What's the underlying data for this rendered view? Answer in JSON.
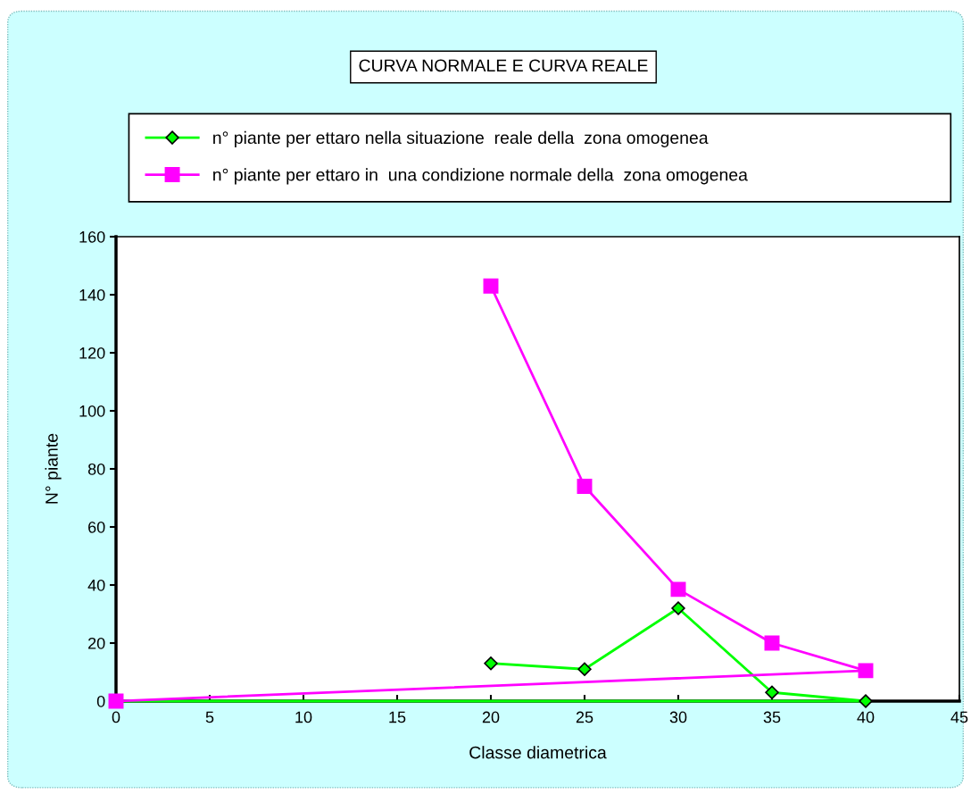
{
  "chart_data": {
    "type": "line",
    "title": "CURVA NORMALE E CURVA REALE",
    "xlabel": "Classe diametrica",
    "ylabel": "N° piante",
    "series": [
      {
        "name": "n° piante per ettaro nella situazione  reale della  zona omogenea",
        "color": "#00ff00",
        "marker": "diamond",
        "x": [
          20,
          25,
          30,
          35,
          40,
          0
        ],
        "values": [
          13,
          11,
          32,
          3,
          0,
          0
        ]
      },
      {
        "name": "n° piante per ettaro in  una condizione normale della  zona omogenea",
        "color": "#ff00ff",
        "marker": "square",
        "x": [
          20,
          25,
          30,
          35,
          40,
          0
        ],
        "values": [
          143,
          74,
          38.5,
          20,
          10.5,
          0
        ]
      }
    ],
    "xlim": [
      0,
      45
    ],
    "xticks": [
      0,
      5,
      10,
      15,
      20,
      25,
      30,
      35,
      40,
      45
    ],
    "ylim": [
      0,
      160
    ],
    "yticks": [
      0,
      20,
      40,
      60,
      80,
      100,
      120,
      140,
      160
    ],
    "grid": false,
    "legend": "top",
    "line_style": "solid"
  }
}
